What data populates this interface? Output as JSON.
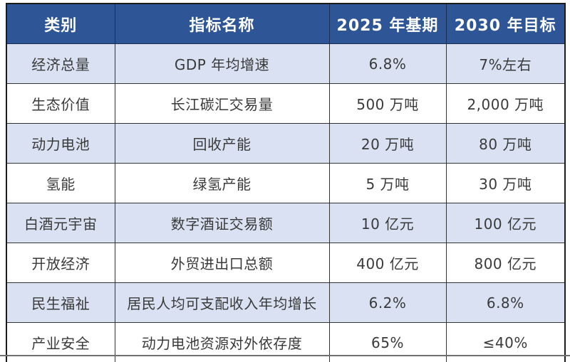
{
  "colors": {
    "header_bg": "#2E5696",
    "header_text": "#FFFFFF",
    "alt_row_bg": "#D9E1F2",
    "row_bg": "#FFFFFF",
    "body_text": "#3A3A3A",
    "border": "#333333"
  },
  "table": {
    "headers": [
      "类别",
      "指标名称",
      "2025 年基期",
      "2030 年目标"
    ],
    "rows": [
      {
        "category": "经济总量",
        "indicator": "GDP 年均增速",
        "base": "6.8%",
        "target": "7%左右"
      },
      {
        "category": "生态价值",
        "indicator": "长江碳汇交易量",
        "base": "500 万吨",
        "target": "2,000 万吨"
      },
      {
        "category": "动力电池",
        "indicator": "回收产能",
        "base": "20 万吨",
        "target": "80 万吨"
      },
      {
        "category": "氢能",
        "indicator": "绿氢产能",
        "base": "5 万吨",
        "target": "30 万吨"
      },
      {
        "category": "白酒元宇宙",
        "indicator": "数字酒证交易额",
        "base": "10 亿元",
        "target": "100 亿元"
      },
      {
        "category": "开放经济",
        "indicator": "外贸进出口总额",
        "base": "400 亿元",
        "target": "800 亿元"
      },
      {
        "category": "民生福祉",
        "indicator": "居民人均可支配收入年均增长",
        "base": "6.2%",
        "target": "6.8%"
      },
      {
        "category": "产业安全",
        "indicator": "动力电池资源对外依存度",
        "base": "65%",
        "target": "≤40%"
      }
    ]
  }
}
